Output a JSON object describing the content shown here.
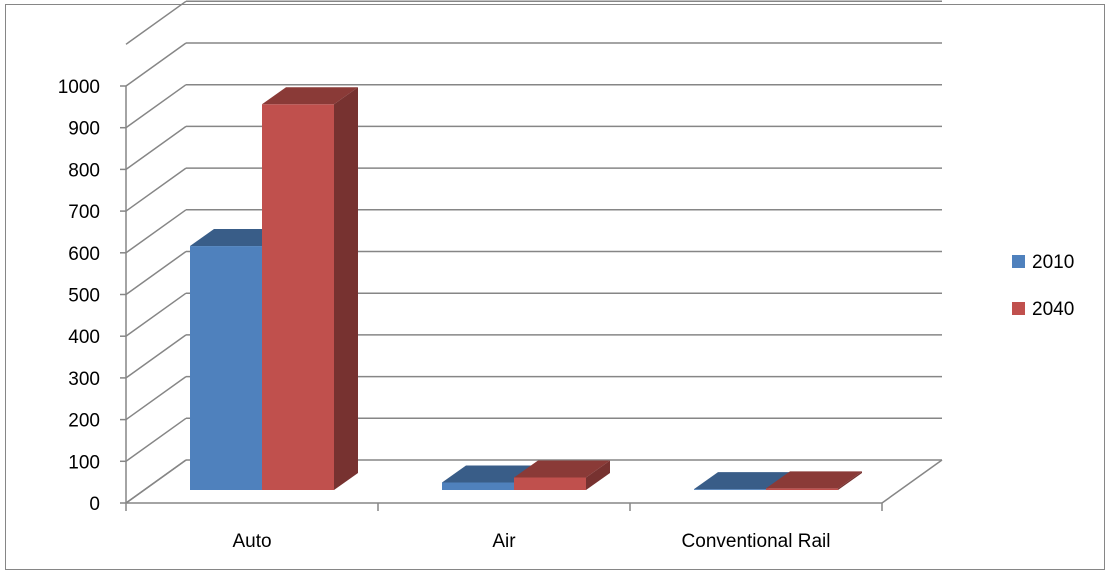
{
  "chart_data": {
    "type": "bar",
    "categories": [
      "Auto",
      "Air",
      "Conventional Rail"
    ],
    "series": [
      {
        "name": "2010",
        "values": [
          585,
          18,
          2
        ],
        "color": "#4F81BD"
      },
      {
        "name": "2040",
        "values": [
          925,
          30,
          4
        ],
        "color": "#C0504D"
      }
    ],
    "title": "",
    "xlabel": "",
    "ylabel": "",
    "ylim": [
      0,
      1000
    ],
    "yticks": [
      0,
      100,
      200,
      300,
      400,
      500,
      600,
      700,
      800,
      900,
      1000
    ],
    "grid": true,
    "legend": "right",
    "three_d": true
  }
}
